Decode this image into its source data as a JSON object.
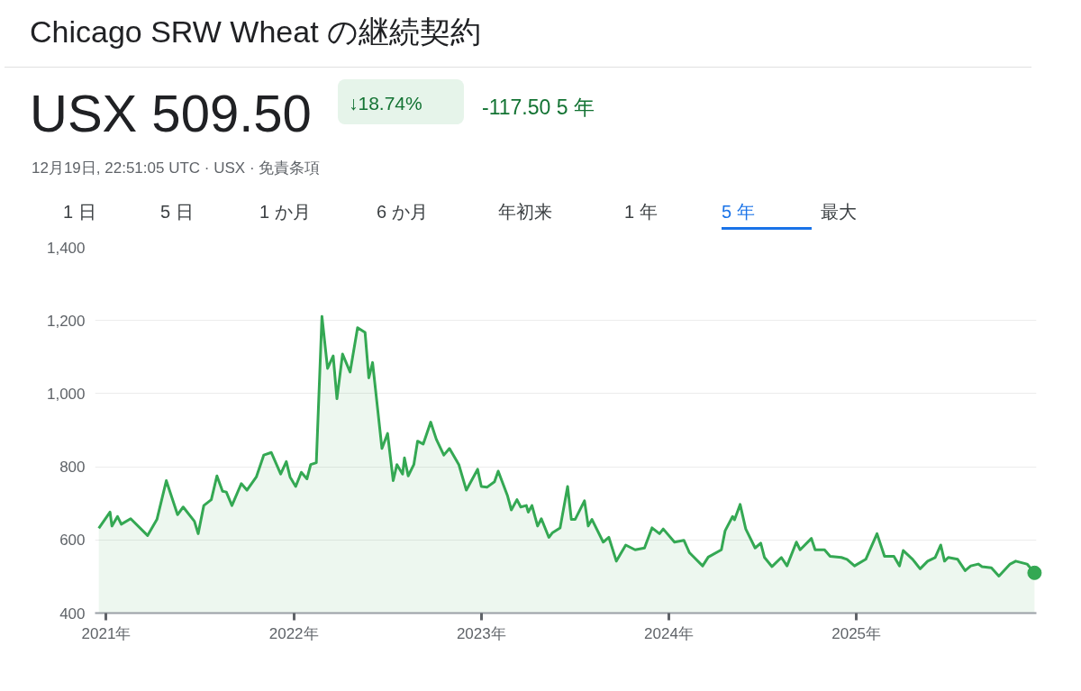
{
  "chart_data": {
    "type": "area",
    "title": "Chicago SRW Wheat の継続契約",
    "subtitle": "12月19日, 22:51:05 UTC · USX · 免責条項",
    "annotations": [
      "USX 509.50",
      "↓18.74%",
      "-117.50 5 年",
      "1 日",
      "5 日",
      "1 か月",
      "6 か月",
      "年初来",
      "1 年",
      "5 年",
      "最大"
    ],
    "xlim": [
      2020.94,
      2025.96
    ],
    "xticks": [
      {
        "value": 2021,
        "label": "2021年"
      },
      {
        "value": 2022,
        "label": "2022年"
      },
      {
        "value": 2023,
        "label": "2023年"
      },
      {
        "value": 2024,
        "label": "2024年"
      },
      {
        "value": 2025,
        "label": "2025年"
      }
    ],
    "ylim": [
      400,
      1400
    ],
    "yticks": [
      {
        "value": 400,
        "label": "400"
      },
      {
        "value": 600,
        "label": "600"
      },
      {
        "value": 800,
        "label": "800"
      },
      {
        "value": 1000,
        "label": "1,000"
      },
      {
        "value": 1200,
        "label": "1,200"
      },
      {
        "value": 1400,
        "label": "1,400"
      }
    ],
    "grid": "y",
    "marker": "none",
    "series": [
      {
        "color": "#34a853",
        "x": [
          2020.96,
          2021.02,
          2021.03,
          2021.06,
          2021.08,
          2021.13,
          2021.22,
          2021.27,
          2021.32,
          2021.38,
          2021.41,
          2021.47,
          2021.49,
          2021.52,
          2021.56,
          2021.59,
          2021.62,
          2021.64,
          2021.67,
          2021.72,
          2021.75,
          2021.8,
          2021.84,
          2021.88,
          2021.93,
          2021.96,
          2021.98,
          2022.01,
          2022.04,
          2022.07,
          2022.09,
          2022.12,
          2022.15,
          2022.18,
          2022.21,
          2022.23,
          2022.26,
          2022.3,
          2022.34,
          2022.38,
          2022.4,
          2022.42,
          2022.47,
          2022.5,
          2022.53,
          2022.55,
          2022.58,
          2022.59,
          2022.61,
          2022.64,
          2022.66,
          2022.69,
          2022.73,
          2022.76,
          2022.8,
          2022.83,
          2022.88,
          2022.92,
          2022.98,
          2023.0,
          2023.03,
          2023.07,
          2023.09,
          2023.14,
          2023.16,
          2023.19,
          2023.21,
          2023.24,
          2023.25,
          2023.27,
          2023.3,
          2023.32,
          2023.36,
          2023.38,
          2023.42,
          2023.46,
          2023.48,
          2023.5,
          2023.55,
          2023.57,
          2023.59,
          2023.65,
          2023.68,
          2023.72,
          2023.77,
          2023.82,
          2023.87,
          2023.91,
          2023.95,
          2023.97,
          2024.03,
          2024.08,
          2024.11,
          2024.18,
          2024.21,
          2024.28,
          2024.3,
          2024.34,
          2024.35,
          2024.38,
          2024.41,
          2024.46,
          2024.49,
          2024.51,
          2024.55,
          2024.6,
          2024.63,
          2024.68,
          2024.7,
          2024.76,
          2024.78,
          2024.83,
          2024.86,
          2024.92,
          2024.95,
          2024.99,
          2025.05,
          2025.11,
          2025.15,
          2025.2,
          2025.23,
          2025.25,
          2025.3,
          2025.34,
          2025.38,
          2025.42,
          2025.45,
          2025.47,
          2025.49,
          2025.54,
          2025.58,
          2025.61,
          2025.65,
          2025.67,
          2025.72,
          2025.76,
          2025.82,
          2025.85,
          2025.91,
          2025.95
        ],
        "values": [
          632,
          676,
          638,
          664,
          643,
          658,
          612,
          656,
          762,
          669,
          690,
          651,
          617,
          694,
          710,
          775,
          733,
          731,
          694,
          754,
          736,
          772,
          832,
          839,
          780,
          814,
          772,
          746,
          785,
          767,
          806,
          811,
          1211,
          1069,
          1103,
          986,
          1108,
          1059,
          1180,
          1167,
          1043,
          1085,
          850,
          891,
          762,
          806,
          780,
          824,
          775,
          806,
          870,
          862,
          922,
          875,
          832,
          850,
          806,
          736,
          793,
          746,
          744,
          759,
          788,
          720,
          682,
          710,
          690,
          694,
          676,
          694,
          638,
          658,
          607,
          620,
          633,
          746,
          656,
          656,
          707,
          638,
          656,
          594,
          607,
          542,
          586,
          573,
          578,
          633,
          617,
          630,
          594,
          599,
          565,
          529,
          553,
          573,
          625,
          664,
          655,
          697,
          630,
          578,
          591,
          552,
          527,
          552,
          529,
          594,
          573,
          604,
          573,
          573,
          555,
          552,
          547,
          529,
          547,
          617,
          555,
          555,
          529,
          571,
          547,
          521,
          542,
          552,
          586,
          542,
          552,
          547,
          516,
          529,
          534,
          527,
          524,
          501,
          534,
          542,
          534,
          510
        ]
      }
    ]
  }
}
